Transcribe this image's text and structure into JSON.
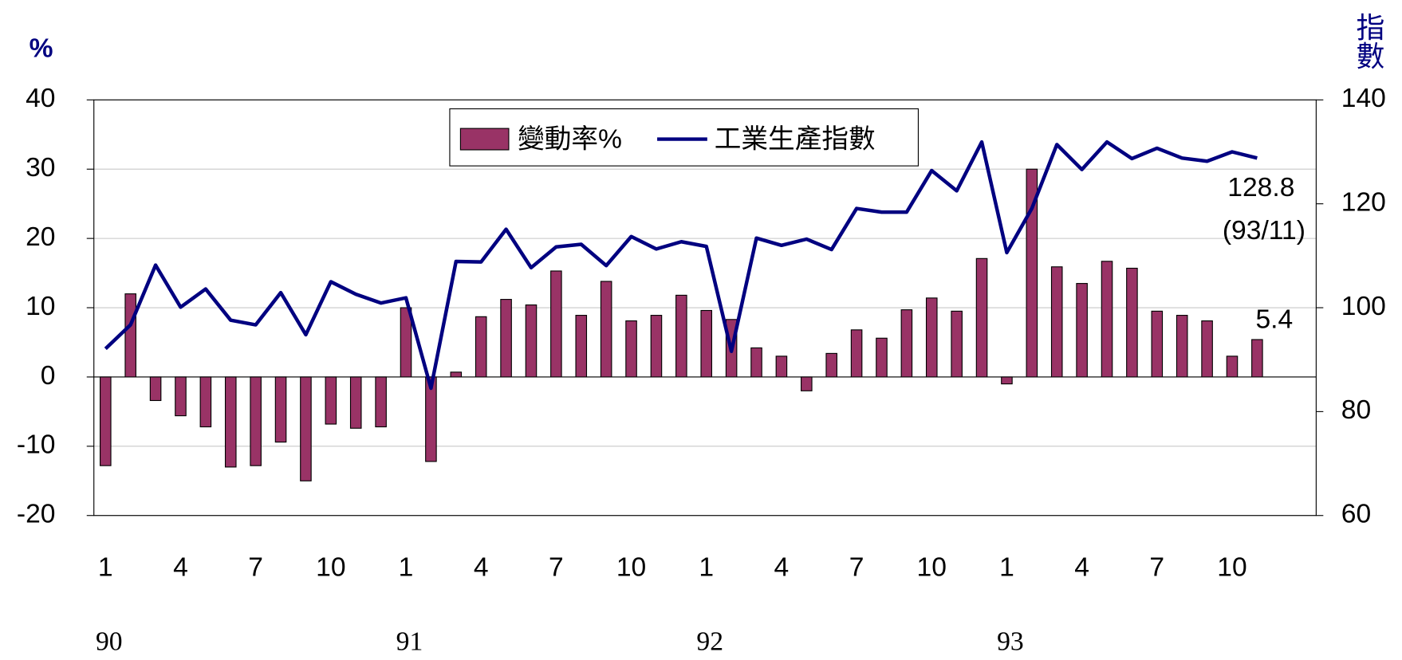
{
  "chart_data": {
    "type": "bar_line",
    "y_label": "%",
    "y2_label": "指數",
    "categories": [
      "1",
      null,
      null,
      "4",
      null,
      null,
      "7",
      null,
      null,
      "10",
      null,
      null,
      "1",
      null,
      null,
      "4",
      null,
      null,
      "7",
      null,
      null,
      "10",
      null,
      null,
      "1",
      null,
      null,
      "4",
      null,
      null,
      "7",
      null,
      null,
      "10",
      null,
      null,
      "1",
      null,
      null,
      "4",
      null,
      null,
      "7",
      null,
      null,
      "10",
      null
    ],
    "year_labels": [
      "90",
      "91",
      "92",
      "93"
    ],
    "series": [
      {
        "name": "變動率%",
        "color": "#993366",
        "type": "bar",
        "values": [
          -12.8,
          12,
          -3.4,
          -5.6,
          -7.2,
          -13,
          -12.8,
          -9.4,
          -15,
          -6.8,
          -7.4,
          -7.2,
          10,
          -12.2,
          0.7,
          8.7,
          11.2,
          10.4,
          15.3,
          8.9,
          13.8,
          8.1,
          8.9,
          11.8,
          9.6,
          8.3,
          4.2,
          3,
          -2,
          3.4,
          6.8,
          5.6,
          9.7,
          11.4,
          9.5,
          17.1,
          -1,
          30,
          15.9,
          13.5,
          16.7,
          15.7,
          9.5,
          8.9,
          8.1,
          3,
          5.4
        ]
      },
      {
        "name": "工業生產指數",
        "color": "#000080",
        "type": "line",
        "axis": "y2",
        "values": [
          92.1,
          96.7,
          108.2,
          100.1,
          103.6,
          97.6,
          96.7,
          102.9,
          94.8,
          105,
          102.6,
          100.9,
          101.9,
          84.5,
          108.9,
          108.8,
          115.1,
          107.7,
          111.7,
          112.2,
          108.1,
          113.7,
          111.3,
          112.7,
          111.8,
          91.6,
          113.4,
          112,
          113.2,
          111.2,
          119.1,
          118.4,
          118.4,
          126.4,
          122.5,
          131.9,
          110.6,
          119.1,
          131.4,
          126.6,
          131.9,
          128.7,
          130.7,
          128.8,
          128.2,
          130,
          128.8
        ]
      }
    ],
    "annotations": [
      "128.8",
      "(93/11)",
      "5.4"
    ],
    "ylim": [
      -20,
      40
    ],
    "yticks": [
      -20,
      -10,
      0,
      10,
      20,
      30,
      40
    ],
    "y2lim": [
      60,
      140
    ],
    "y2ticks": [
      60,
      80,
      100,
      120,
      140
    ],
    "grid": true,
    "legend": "top"
  }
}
